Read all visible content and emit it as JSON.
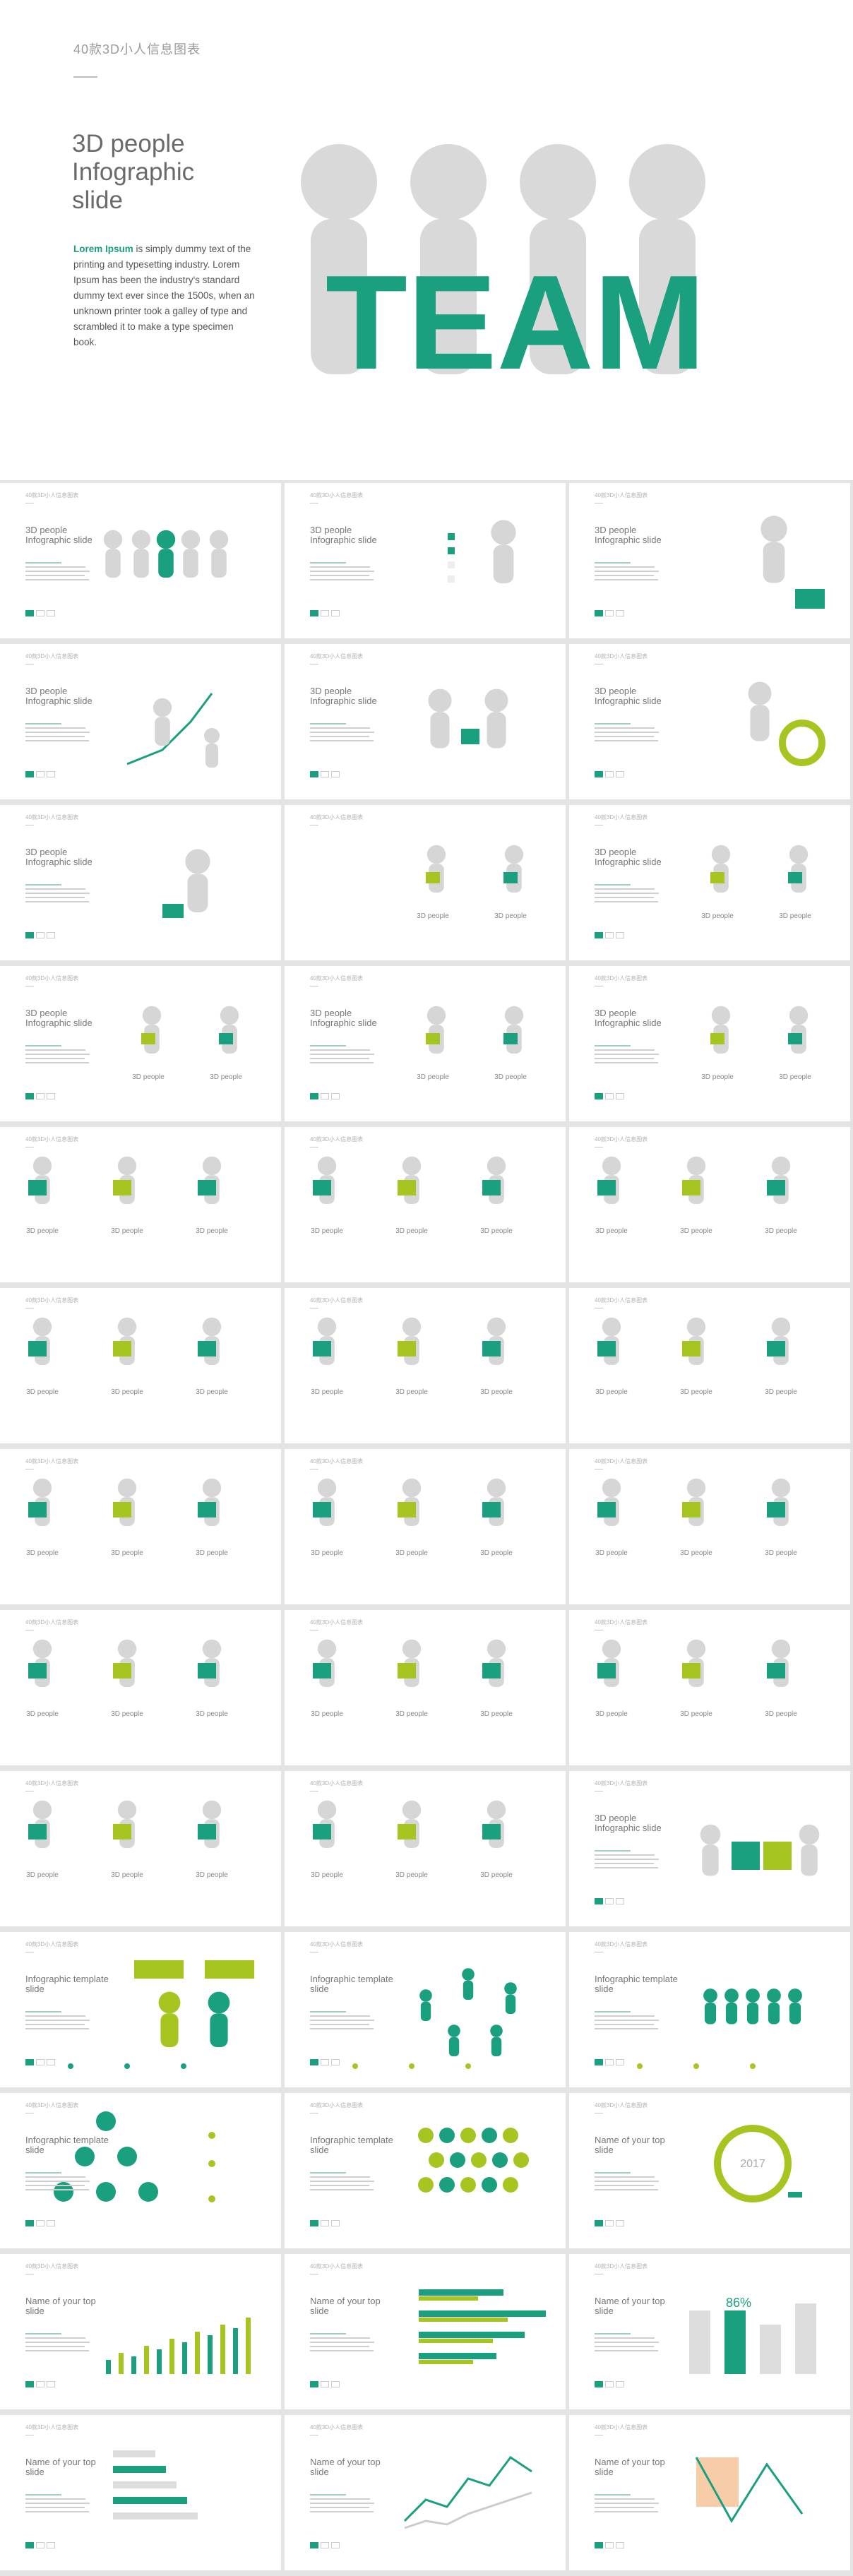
{
  "hero": {
    "brand": "40款3D小人信息图表",
    "title": "3D people Infographic slide",
    "body_lead": "Lorem Ipsum",
    "body_rest": " is simply dummy text of the printing and typesetting industry. Lorem Ipsum has been the industry's standard dummy text ever since the 1500s, when an unknown printer took a galley of type and scrambled it to make a type specimen book.",
    "team_word": "TEAM"
  },
  "colors": {
    "green": "#1a9f7f",
    "lime": "#a7c521",
    "grey": "#d6d6d6",
    "bg": "#e4e4e4"
  },
  "cards": [
    {
      "tag": "40款3D小人信息图表",
      "title": "3D people Infographic slide",
      "art": "team-row"
    },
    {
      "tag": "40款3D小人信息图表",
      "title": "3D people Infographic slide",
      "art": "checklist"
    },
    {
      "tag": "40款3D小人信息图表",
      "title": "3D people Infographic slide",
      "art": "briefcase"
    },
    {
      "tag": "40款3D小人信息图表",
      "title": "3D people Infographic slide",
      "art": "arrow-up"
    },
    {
      "tag": "40款3D小人信息图表",
      "title": "3D people Infographic slide",
      "art": "handshake"
    },
    {
      "tag": "40款3D小人信息图表",
      "title": "3D people Infographic slide",
      "art": "cycle"
    },
    {
      "tag": "40款3D小人信息图表",
      "title": "3D people Infographic slide",
      "art": "running"
    },
    {
      "tag": "40款3D小人信息图表",
      "title": "",
      "art": "pair",
      "labels": [
        "3D people",
        "3D people"
      ]
    },
    {
      "tag": "40款3D小人信息图表",
      "title": "3D people Infographic slide",
      "art": "pair",
      "labels": [
        "3D people",
        "3D people"
      ]
    },
    {
      "tag": "40款3D小人信息图表",
      "title": "3D people Infographic slide",
      "art": "pair",
      "labels": [
        "3D people",
        "3D people"
      ]
    },
    {
      "tag": "40款3D小人信息图表",
      "title": "3D people Infographic slide",
      "art": "pair",
      "labels": [
        "3D people",
        "3D people"
      ]
    },
    {
      "tag": "40款3D小人信息图表",
      "title": "3D people Infographic slide",
      "art": "pair",
      "labels": [
        "3D people",
        "3D people"
      ]
    },
    {
      "tag": "40款3D小人信息图表",
      "title": "",
      "art": "trio",
      "labels": [
        "3D people",
        "3D people",
        "3D people"
      ]
    },
    {
      "tag": "40款3D小人信息图表",
      "title": "",
      "art": "trio",
      "labels": [
        "3D people",
        "3D people",
        "3D people"
      ]
    },
    {
      "tag": "40款3D小人信息图表",
      "title": "",
      "art": "trio",
      "labels": [
        "3D people",
        "3D people",
        "3D people"
      ]
    },
    {
      "tag": "40款3D小人信息图表",
      "title": "",
      "art": "trio",
      "labels": [
        "3D people",
        "3D people",
        "3D people"
      ]
    },
    {
      "tag": "40款3D小人信息图表",
      "title": "",
      "art": "trio",
      "labels": [
        "3D people",
        "3D people",
        "3D people"
      ]
    },
    {
      "tag": "40款3D小人信息图表",
      "title": "",
      "art": "trio",
      "labels": [
        "3D people",
        "3D people",
        "3D people"
      ]
    },
    {
      "tag": "40款3D小人信息图表",
      "title": "",
      "art": "trio",
      "labels": [
        "3D people",
        "3D people",
        "3D people"
      ]
    },
    {
      "tag": "40款3D小人信息图表",
      "title": "",
      "art": "trio",
      "labels": [
        "3D people",
        "3D people",
        "3D people"
      ]
    },
    {
      "tag": "40款3D小人信息图表",
      "title": "",
      "art": "trio",
      "labels": [
        "3D people",
        "3D people",
        "3D people"
      ]
    },
    {
      "tag": "40款3D小人信息图表",
      "title": "",
      "art": "trio",
      "labels": [
        "3D people",
        "3D people",
        "3D people"
      ]
    },
    {
      "tag": "40款3D小人信息图表",
      "title": "",
      "art": "trio",
      "labels": [
        "3D people",
        "3D people",
        "3D people"
      ]
    },
    {
      "tag": "40款3D小人信息图表",
      "title": "",
      "art": "trio",
      "labels": [
        "3D people",
        "3D people",
        "3D people"
      ]
    },
    {
      "tag": "40款3D小人信息图表",
      "title": "",
      "art": "trio",
      "labels": [
        "3D people",
        "3D people",
        "3D people"
      ]
    },
    {
      "tag": "40款3D小人信息图表",
      "title": "",
      "art": "trio",
      "labels": [
        "3D people",
        "3D people",
        "3D people"
      ]
    },
    {
      "tag": "40款3D小人信息图表",
      "title": "3D people Infographic slide",
      "art": "puzzle"
    },
    {
      "tag": "40款3D小人信息图表",
      "title": "Infographic template slide",
      "art": "people-bubbles"
    },
    {
      "tag": "40款3D小人信息图表",
      "title": "Infographic template slide",
      "art": "network"
    },
    {
      "tag": "40款3D小人信息图表",
      "title": "Infographic template slide",
      "art": "group"
    },
    {
      "tag": "40款3D小人信息图表",
      "title": "Infographic template slide",
      "art": "tree"
    },
    {
      "tag": "40款3D小人信息图表",
      "title": "Infographic template slide",
      "art": "avatars"
    },
    {
      "tag": "40款3D小人信息图表",
      "title": "Name of your top slide",
      "art": "donut",
      "center": "2017"
    },
    {
      "tag": "40款3D小人信息图表",
      "title": "Name of your top slide",
      "art": "bars"
    },
    {
      "tag": "40款3D小人信息图表",
      "title": "Name of your top slide",
      "art": "hbars"
    },
    {
      "tag": "40款3D小人信息图表",
      "title": "Name of your top slide",
      "art": "columns",
      "center": "86%"
    },
    {
      "tag": "40款3D小人信息图表",
      "title": "Name of your top slide",
      "art": "hbars2"
    },
    {
      "tag": "40款3D小人信息图表",
      "title": "Name of your top slide",
      "art": "lines"
    },
    {
      "tag": "40款3D小人信息图表",
      "title": "Name of your top slide",
      "art": "zigzag"
    }
  ]
}
